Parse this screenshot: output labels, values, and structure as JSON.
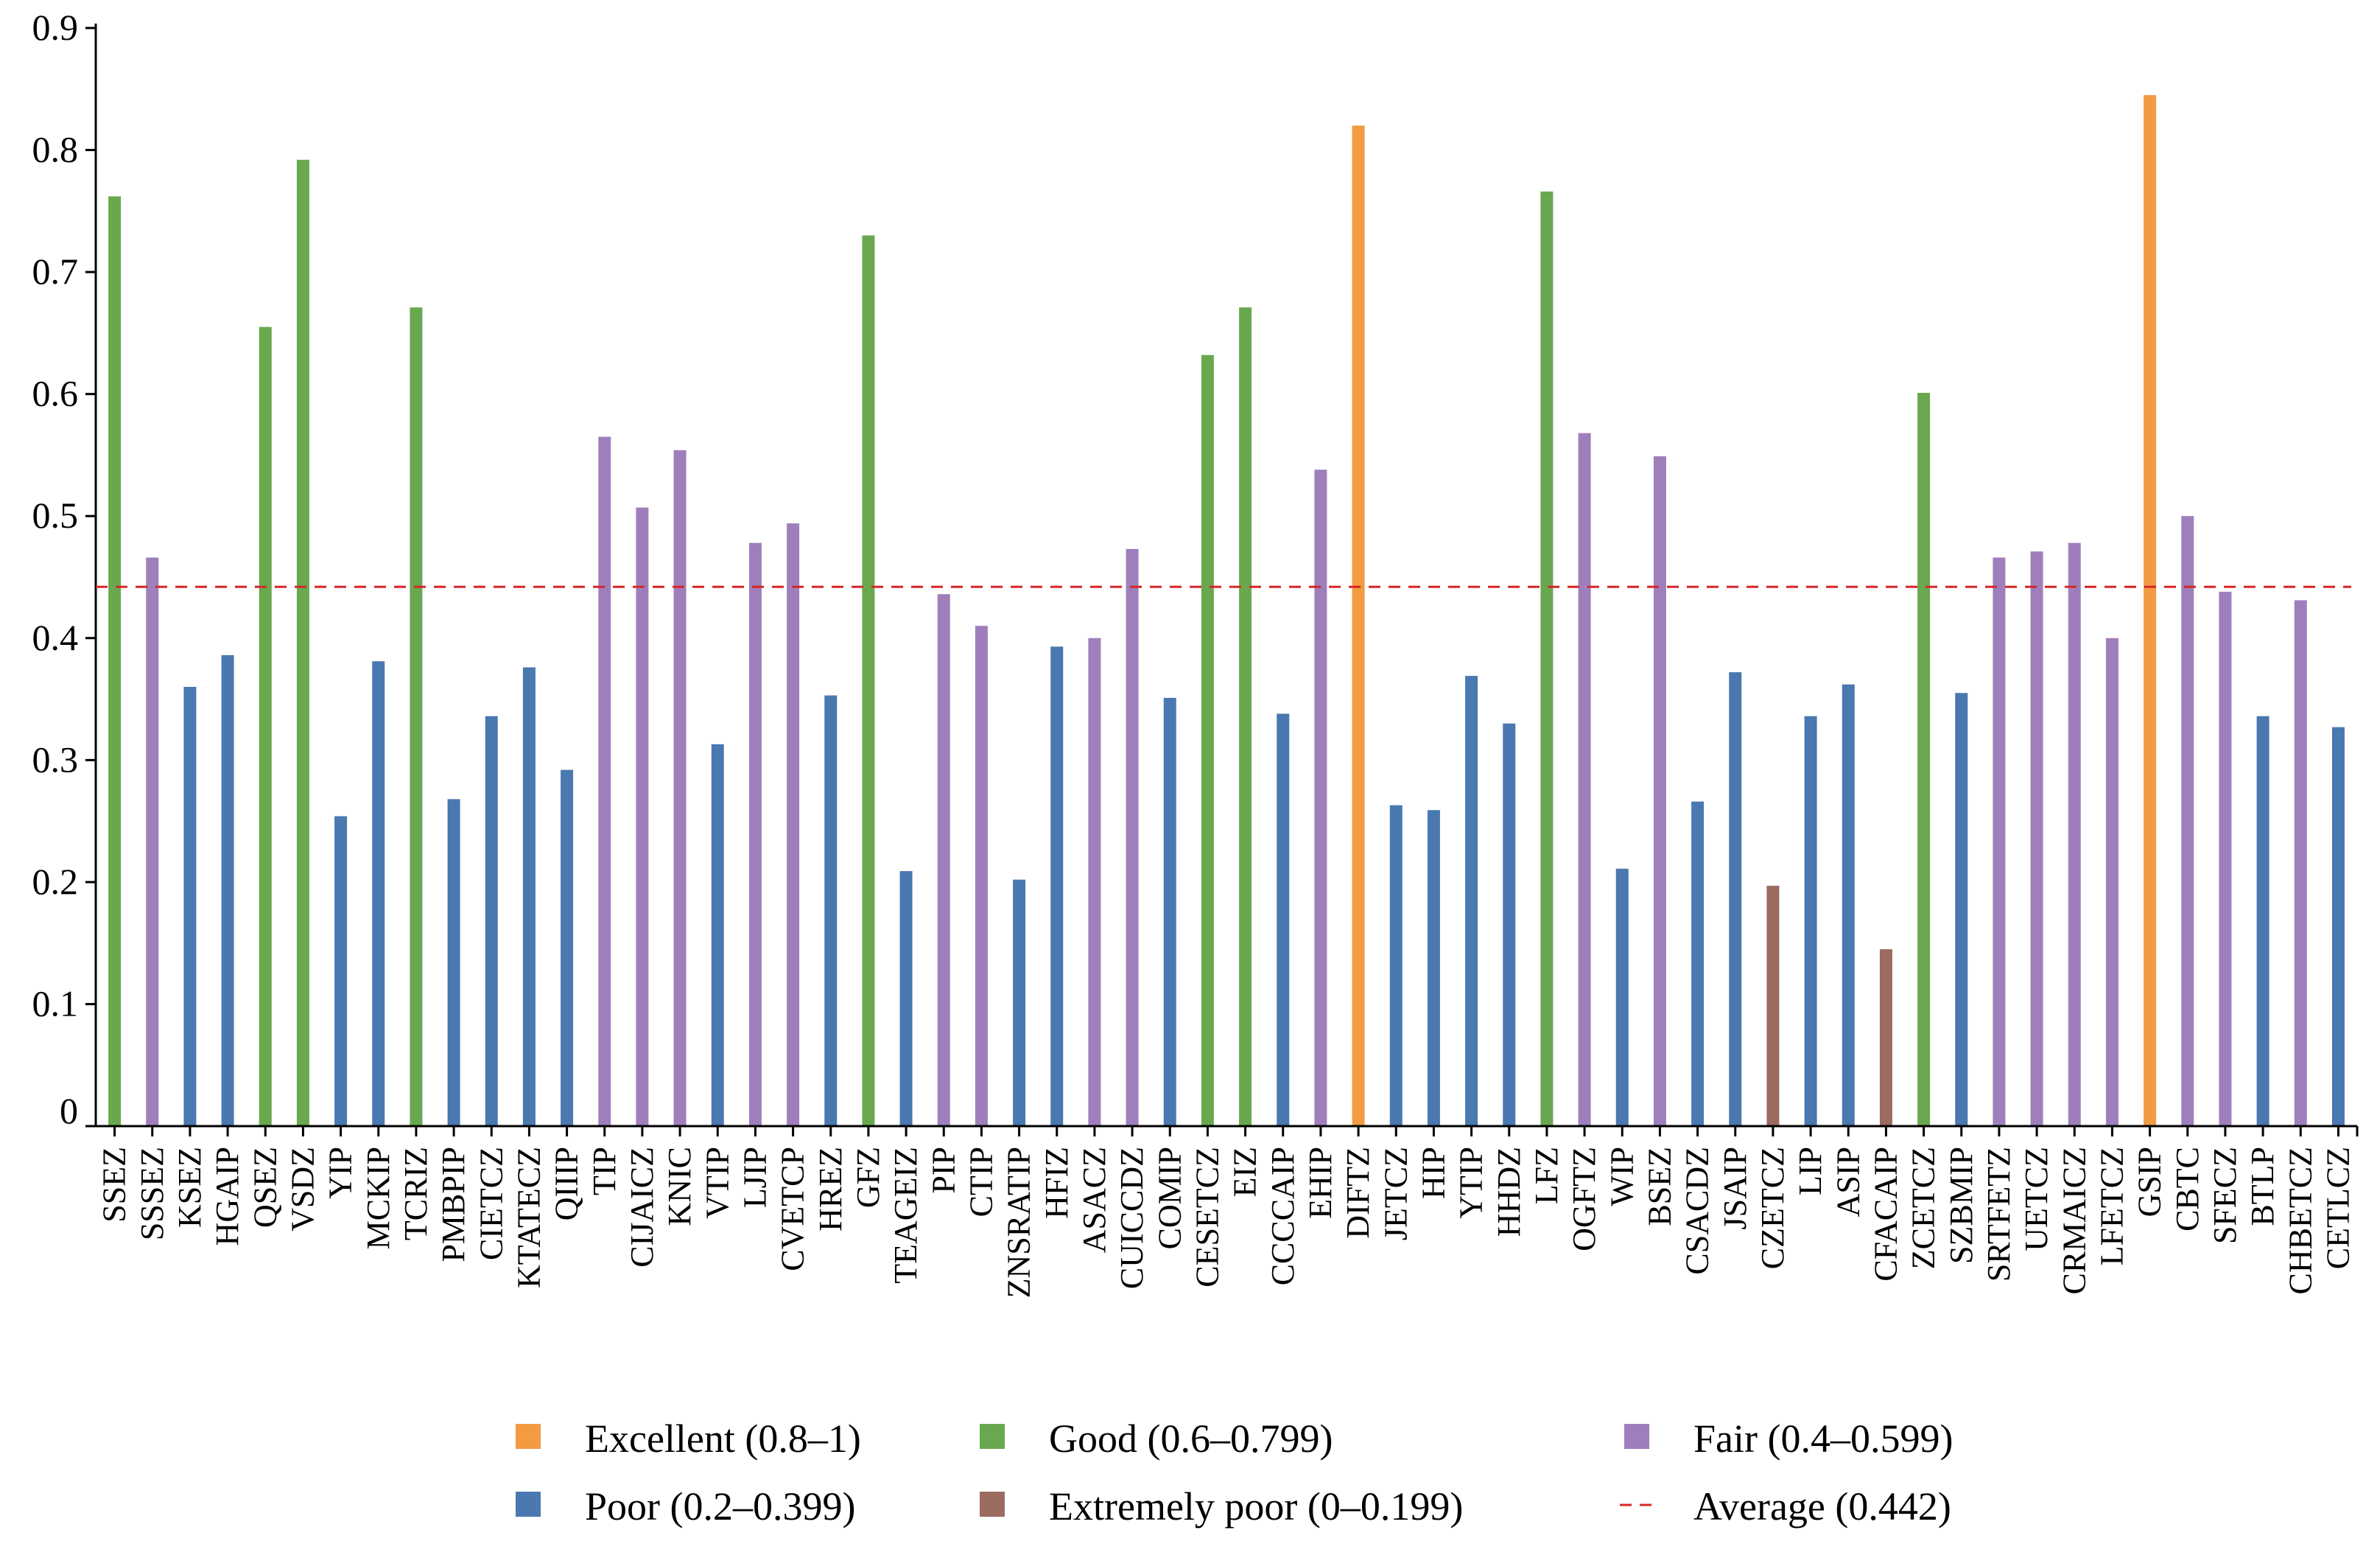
{
  "chart_data": {
    "type": "bar",
    "title": "",
    "xlabel": "",
    "ylabel": "",
    "ylim": [
      0,
      0.9
    ],
    "yticks": [
      "0",
      "0.1",
      "0.2",
      "0.3",
      "0.4",
      "0.5",
      "0.6",
      "0.7",
      "0.8",
      "0.9"
    ],
    "grid": false,
    "legend_position": "bottom",
    "categories": [
      "SSEZ",
      "SSSEZ",
      "KSEZ",
      "HGAIP",
      "QSEZ",
      "VSDZ",
      "YIP",
      "MCKIP",
      "TCRIZ",
      "PMBPIP",
      "CIETCZ",
      "KTATECZ",
      "QIIIP",
      "TIP",
      "CIJAICZ",
      "KNIC",
      "VTIP",
      "LJIP",
      "CVETCP",
      "HREZ",
      "GFZ",
      "TEAGEIZ",
      "PIP",
      "CTIP",
      "ZNSRATIP",
      "HFIZ",
      "ASACZ",
      "CUICCDZ",
      "COMIP",
      "CESETCZ",
      "EIZ",
      "CCCCAIP",
      "EHIP",
      "DIFTZ",
      "JETCZ",
      "HIP",
      "YTIP",
      "HHDZ",
      "LFZ",
      "OGFTZ",
      "WIP",
      "BSEZ",
      "CSACDZ",
      "JSAIP",
      "CZETCZ",
      "LIP",
      "ASIP",
      "CFACAIP",
      "ZCETCZ",
      "SZBMIP",
      "SRTFETZ",
      "UETCZ",
      "CRMAICZ",
      "LFETCZ",
      "GSIP",
      "CBTC",
      "SFECZ",
      "BTLP",
      "CHBETCZ",
      "CETLCZ"
    ],
    "values": [
      0.762,
      0.466,
      0.36,
      0.386,
      0.655,
      0.792,
      0.254,
      0.381,
      0.671,
      0.268,
      0.336,
      0.376,
      0.292,
      0.565,
      0.507,
      0.554,
      0.313,
      0.478,
      0.494,
      0.353,
      0.73,
      0.209,
      0.436,
      0.41,
      0.202,
      0.393,
      0.4,
      0.473,
      0.351,
      0.632,
      0.671,
      0.338,
      0.538,
      0.82,
      0.263,
      0.259,
      0.369,
      0.33,
      0.766,
      0.568,
      0.211,
      0.549,
      0.266,
      0.372,
      0.197,
      0.336,
      0.362,
      0.145,
      0.601,
      0.355,
      0.466,
      0.471,
      0.478,
      0.4,
      0.845,
      0.5,
      0.438,
      0.336,
      0.431,
      0.327
    ],
    "categories_classes": [
      "Good",
      "Fair",
      "Poor",
      "Poor",
      "Good",
      "Good",
      "Poor",
      "Poor",
      "Good",
      "Poor",
      "Poor",
      "Poor",
      "Poor",
      "Fair",
      "Fair",
      "Fair",
      "Poor",
      "Fair",
      "Fair",
      "Poor",
      "Good",
      "Poor",
      "Fair",
      "Fair",
      "Poor",
      "Poor",
      "Fair",
      "Fair",
      "Poor",
      "Good",
      "Good",
      "Poor",
      "Fair",
      "Excellent",
      "Poor",
      "Poor",
      "Poor",
      "Poor",
      "Good",
      "Fair",
      "Poor",
      "Fair",
      "Poor",
      "Poor",
      "Extremely poor",
      "Poor",
      "Poor",
      "Extremely poor",
      "Good",
      "Poor",
      "Fair",
      "Fair",
      "Fair",
      "Fair",
      "Excellent",
      "Fair",
      "Fair",
      "Poor",
      "Fair",
      "Poor"
    ],
    "average": {
      "value": 0.442,
      "label": "Average (0.442)",
      "color": "#d62728",
      "style": "dashed"
    },
    "classes": [
      {
        "name": "Excellent",
        "label": "Excellent (0.8–1)",
        "color": "#f29b43"
      },
      {
        "name": "Good",
        "label": "Good (0.6–0.799)",
        "color": "#6aa84f"
      },
      {
        "name": "Fair",
        "label": "Fair (0.4–0.599)",
        "color": "#9f7fbb"
      },
      {
        "name": "Poor",
        "label": "Poor (0.2–0.399)",
        "color": "#4a78b0"
      },
      {
        "name": "Extremely poor",
        "label": "Extremely poor (0–0.199)",
        "color": "#9c6b62"
      }
    ]
  }
}
